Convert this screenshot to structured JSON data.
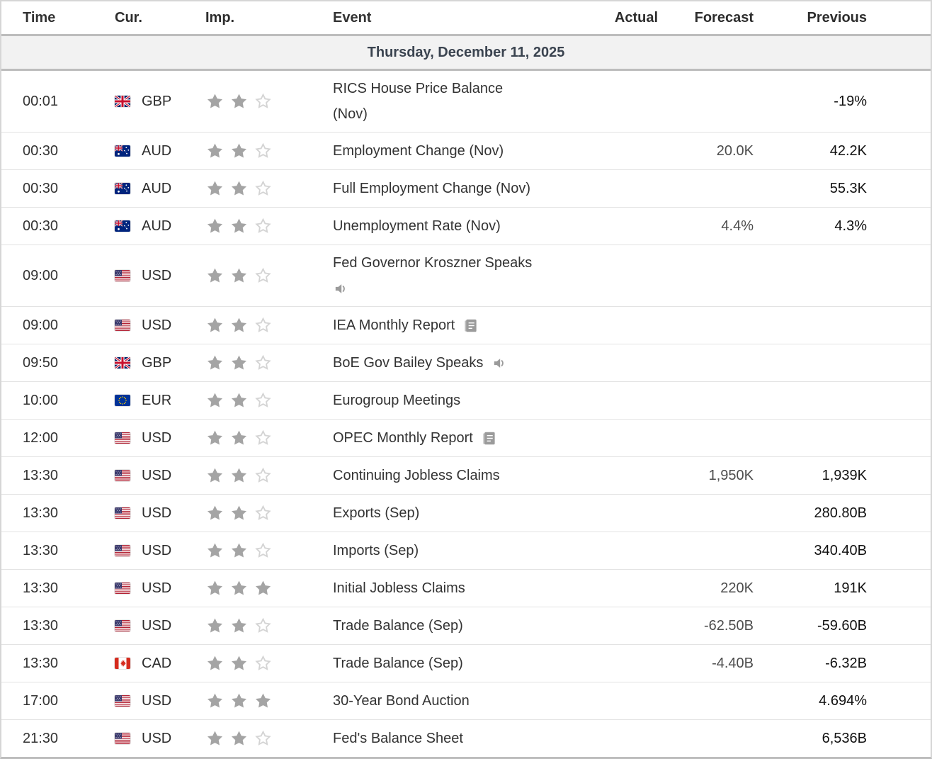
{
  "table": {
    "columns": [
      "Time",
      "Cur.",
      "Imp.",
      "Event",
      "Actual",
      "Forecast",
      "Previous"
    ],
    "date_header": "Thursday, December 11, 2025",
    "rows": [
      {
        "time": "00:01",
        "cur": "GBP",
        "flag": "gb",
        "stars": 2,
        "event": "RICS House Price Balance",
        "line2": "(Nov)",
        "icon": null,
        "icon_below": false,
        "actual": "",
        "forecast": "",
        "previous": "-19%"
      },
      {
        "time": "00:30",
        "cur": "AUD",
        "flag": "au",
        "stars": 2,
        "event": "Employment Change (Nov)",
        "line2": null,
        "icon": null,
        "icon_below": false,
        "actual": "",
        "forecast": "20.0K",
        "previous": "42.2K"
      },
      {
        "time": "00:30",
        "cur": "AUD",
        "flag": "au",
        "stars": 2,
        "event": "Full Employment Change (Nov)",
        "line2": null,
        "icon": null,
        "icon_below": false,
        "actual": "",
        "forecast": "",
        "previous": "55.3K"
      },
      {
        "time": "00:30",
        "cur": "AUD",
        "flag": "au",
        "stars": 2,
        "event": "Unemployment Rate (Nov)",
        "line2": null,
        "icon": null,
        "icon_below": false,
        "actual": "",
        "forecast": "4.4%",
        "previous": "4.3%"
      },
      {
        "time": "09:00",
        "cur": "USD",
        "flag": "us",
        "stars": 2,
        "event": "Fed Governor Kroszner Speaks",
        "line2": null,
        "icon": "speaker",
        "icon_below": true,
        "actual": "",
        "forecast": "",
        "previous": ""
      },
      {
        "time": "09:00",
        "cur": "USD",
        "flag": "us",
        "stars": 2,
        "event": "IEA Monthly Report",
        "line2": null,
        "icon": "report",
        "icon_below": false,
        "actual": "",
        "forecast": "",
        "previous": ""
      },
      {
        "time": "09:50",
        "cur": "GBP",
        "flag": "gb",
        "stars": 2,
        "event": "BoE Gov Bailey Speaks",
        "line2": null,
        "icon": "speaker",
        "icon_below": false,
        "actual": "",
        "forecast": "",
        "previous": ""
      },
      {
        "time": "10:00",
        "cur": "EUR",
        "flag": "eu",
        "stars": 2,
        "event": "Eurogroup Meetings",
        "line2": null,
        "icon": null,
        "icon_below": false,
        "actual": "",
        "forecast": "",
        "previous": ""
      },
      {
        "time": "12:00",
        "cur": "USD",
        "flag": "us",
        "stars": 2,
        "event": "OPEC Monthly Report",
        "line2": null,
        "icon": "report",
        "icon_below": false,
        "actual": "",
        "forecast": "",
        "previous": ""
      },
      {
        "time": "13:30",
        "cur": "USD",
        "flag": "us",
        "stars": 2,
        "event": "Continuing Jobless Claims",
        "line2": null,
        "icon": null,
        "icon_below": false,
        "actual": "",
        "forecast": "1,950K",
        "previous": "1,939K"
      },
      {
        "time": "13:30",
        "cur": "USD",
        "flag": "us",
        "stars": 2,
        "event": "Exports (Sep)",
        "line2": null,
        "icon": null,
        "icon_below": false,
        "actual": "",
        "forecast": "",
        "previous": "280.80B"
      },
      {
        "time": "13:30",
        "cur": "USD",
        "flag": "us",
        "stars": 2,
        "event": "Imports (Sep)",
        "line2": null,
        "icon": null,
        "icon_below": false,
        "actual": "",
        "forecast": "",
        "previous": "340.40B"
      },
      {
        "time": "13:30",
        "cur": "USD",
        "flag": "us",
        "stars": 3,
        "event": "Initial Jobless Claims",
        "line2": null,
        "icon": null,
        "icon_below": false,
        "actual": "",
        "forecast": "220K",
        "previous": "191K"
      },
      {
        "time": "13:30",
        "cur": "USD",
        "flag": "us",
        "stars": 2,
        "event": "Trade Balance (Sep)",
        "line2": null,
        "icon": null,
        "icon_below": false,
        "actual": "",
        "forecast": "-62.50B",
        "previous": "-59.60B"
      },
      {
        "time": "13:30",
        "cur": "CAD",
        "flag": "ca",
        "stars": 2,
        "event": "Trade Balance (Sep)",
        "line2": null,
        "icon": null,
        "icon_below": false,
        "actual": "",
        "forecast": "-4.40B",
        "previous": "-6.32B"
      },
      {
        "time": "17:00",
        "cur": "USD",
        "flag": "us",
        "stars": 3,
        "event": "30-Year Bond Auction",
        "line2": null,
        "icon": null,
        "icon_below": false,
        "actual": "",
        "forecast": "",
        "previous": "4.694%"
      },
      {
        "time": "21:30",
        "cur": "USD",
        "flag": "us",
        "stars": 2,
        "event": "Fed's Balance Sheet",
        "line2": null,
        "icon": null,
        "icon_below": false,
        "actual": "",
        "forecast": "",
        "previous": "6,536B"
      }
    ]
  },
  "icons": {
    "speaker": "speaker-icon",
    "report": "report-icon",
    "star_filled": "star-filled-icon",
    "star_empty": "star-empty-icon"
  },
  "colors": {
    "header_text": "#2d2d2d",
    "date_row_bg": "#f2f2f2",
    "date_row_text": "#3b4450",
    "row_border": "#e3e3e3",
    "section_border": "#bdbdbd",
    "star_filled": "#a4a4a4",
    "star_empty": "#d4d4d4",
    "forecast_text": "#4d4d4d",
    "previous_text": "#111111",
    "event_text": "#333333"
  }
}
